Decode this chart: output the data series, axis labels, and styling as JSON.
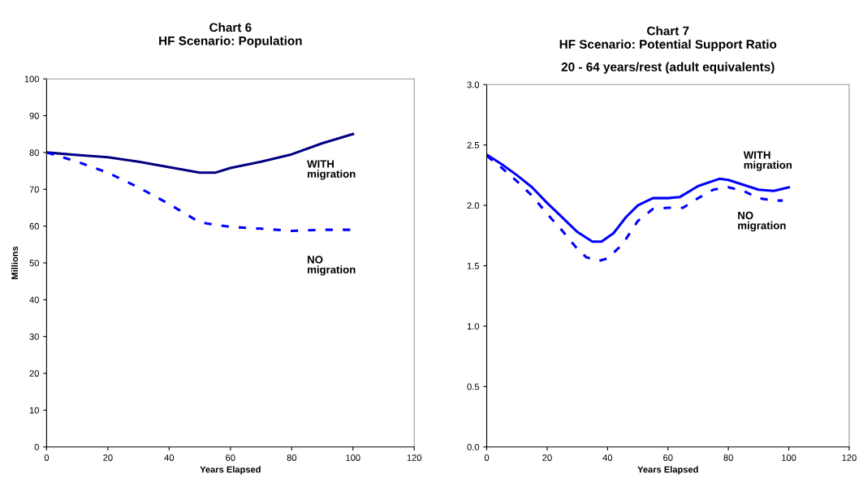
{
  "chart_data": [
    {
      "type": "line",
      "title": "Chart 6\nHF Scenario: Population",
      "xlabel": "Years Elapsed",
      "ylabel": "Millions",
      "xlim": [
        0,
        120
      ],
      "xticks": [
        0,
        20,
        40,
        60,
        80,
        100,
        120
      ],
      "ylim": [
        0,
        100
      ],
      "yticks": [
        0,
        10,
        20,
        30,
        40,
        50,
        60,
        70,
        80,
        90,
        100
      ],
      "grid": false,
      "legend": false,
      "series": [
        {
          "name": "WITH\nmigration",
          "color": "#000080",
          "line_style": "solid",
          "x": [
            0,
            10,
            20,
            30,
            40,
            50,
            55,
            60,
            70,
            80,
            90,
            100
          ],
          "values": [
            80,
            79.3,
            78.7,
            77.5,
            76,
            74.5,
            74.5,
            75.8,
            77.5,
            79.5,
            82.5,
            85
          ]
        },
        {
          "name": "NO\nmigration",
          "color": "#0000ff",
          "line_style": "dashed",
          "x": [
            0,
            10,
            20,
            30,
            40,
            50,
            60,
            70,
            80,
            90,
            100
          ],
          "values": [
            80,
            77.5,
            74.5,
            70.5,
            66,
            61,
            59.8,
            59.3,
            58.7,
            59,
            59
          ]
        }
      ]
    },
    {
      "type": "line",
      "title": "Chart 7\nHF Scenario: Potential Support Ratio",
      "subtitle": "20 - 64 years/rest (adult equivalents)",
      "xlabel": "Years Elapsed",
      "xlim": [
        0,
        120
      ],
      "xticks": [
        0,
        20,
        40,
        60,
        80,
        100,
        120
      ],
      "ylim": [
        0,
        3
      ],
      "yticks": [
        {
          "value": 0,
          "label": "0.0"
        },
        0.5,
        {
          "value": 1,
          "label": "1.0"
        },
        1.5,
        {
          "value": 2,
          "label": "2.0"
        },
        2.5,
        {
          "value": 3,
          "label": "3.0"
        }
      ],
      "grid": false,
      "legend": false,
      "series": [
        {
          "name": "WITH\nmigration",
          "color": "#0000ff",
          "line_style": "solid",
          "x": [
            0,
            5,
            10,
            15,
            20,
            25,
            30,
            35,
            38,
            42,
            46,
            50,
            55,
            60,
            64,
            70,
            77,
            80,
            85,
            90,
            95,
            100
          ],
          "values": [
            2.42,
            2.34,
            2.25,
            2.15,
            2.02,
            1.9,
            1.78,
            1.7,
            1.7,
            1.77,
            1.9,
            2.0,
            2.06,
            2.06,
            2.07,
            2.16,
            2.22,
            2.21,
            2.17,
            2.13,
            2.12,
            2.15
          ]
        },
        {
          "name": "NO\nmigration",
          "color": "#0000ff",
          "line_style": "dashed",
          "x": [
            0,
            5,
            10,
            15,
            20,
            25,
            30,
            33,
            37,
            40,
            45,
            50,
            55,
            60,
            65,
            70,
            75,
            80,
            85,
            90,
            95,
            98
          ],
          "values": [
            2.41,
            2.31,
            2.2,
            2.08,
            1.93,
            1.79,
            1.64,
            1.57,
            1.54,
            1.56,
            1.68,
            1.87,
            1.97,
            1.98,
            1.98,
            2.06,
            2.13,
            2.15,
            2.12,
            2.06,
            2.04,
            2.04
          ]
        }
      ]
    }
  ]
}
